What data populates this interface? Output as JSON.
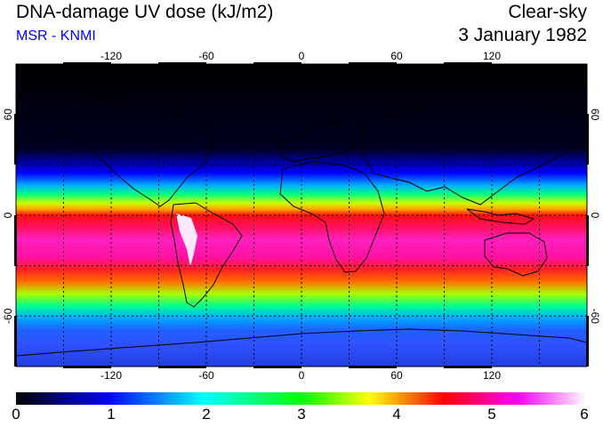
{
  "header": {
    "title": "DNA-damage UV dose (kJ/m2)",
    "source": "MSR - KNMI",
    "condition": "Clear-sky",
    "date": "3 January 1982"
  },
  "map": {
    "projection": "equirectangular",
    "lon_range": [
      -180,
      180
    ],
    "lat_range": [
      -90,
      90
    ],
    "lon_ticks": [
      "-120",
      "-60",
      "0",
      "60",
      "120"
    ],
    "lat_ticks_left": [
      "60",
      "0",
      "-60"
    ],
    "lat_ticks_right": [
      "60",
      "0",
      "-60"
    ],
    "gridlines": "dashed every 30 degrees"
  },
  "colorbar": {
    "min": 0,
    "max": 6,
    "labels": [
      "0",
      "1",
      "2",
      "3",
      "4",
      "5",
      "6"
    ],
    "colors": [
      "#000000",
      "#0000ff",
      "#00ffff",
      "#00ff00",
      "#ffff00",
      "#ff0000",
      "#ff00ff",
      "#ffffff"
    ]
  }
}
